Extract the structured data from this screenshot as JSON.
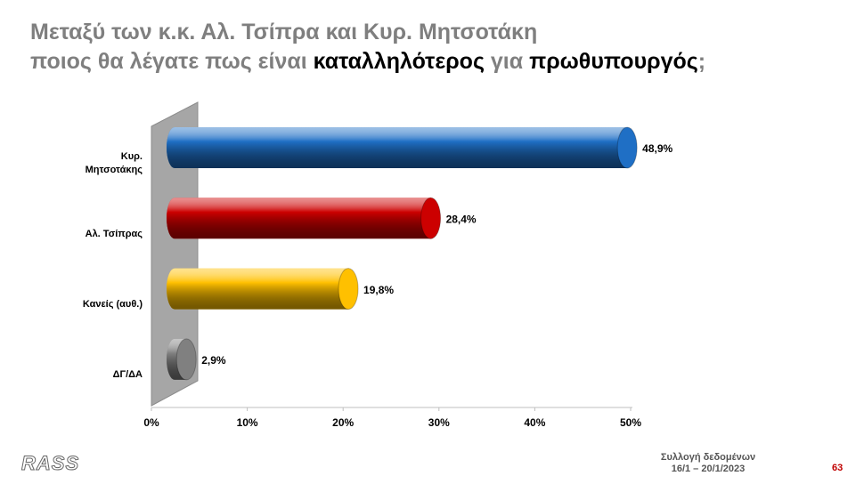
{
  "title_line1": "Μεταξύ των κ.κ. Αλ. Τσίπρα και Κυρ. Μητσοτάκη",
  "title_line2": [
    {
      "text": "ποιος θα λέγατε πως είναι ",
      "emphasis": false
    },
    {
      "text": "καταλληλότερος",
      "emphasis": true
    },
    {
      "text": " για ",
      "emphasis": false
    },
    {
      "text": "πρωθυπουργός",
      "emphasis": true
    },
    {
      "text": ";",
      "emphasis": false
    }
  ],
  "chart_data": {
    "type": "bar",
    "orientation": "horizontal",
    "categories": [
      "Κυρ. Μητσοτάκης",
      "Αλ. Τσίπρας",
      "Κανείς (αυθ.)",
      "ΔΓ/ΔΑ"
    ],
    "values": [
      48.9,
      28.4,
      19.8,
      2.9
    ],
    "value_labels": [
      "48,9%",
      "28,4%",
      "19,8%",
      "2,9%"
    ],
    "colors": [
      "#1f6fc5",
      "#cc0000",
      "#ffc000",
      "#808080"
    ],
    "xlim": [
      0,
      50
    ],
    "xticks": [
      {
        "value": 0,
        "label": "0%"
      },
      {
        "value": 10,
        "label": "10%"
      },
      {
        "value": 20,
        "label": "20%"
      },
      {
        "value": 30,
        "label": "30%"
      },
      {
        "value": 40,
        "label": "40%"
      },
      {
        "value": 50,
        "label": "50%"
      }
    ]
  },
  "footer": {
    "logo": "RASS",
    "source_line1": "Συλλογή δεδομένων",
    "source_line2": "16/1 – 20/1/2023",
    "page": "63"
  }
}
